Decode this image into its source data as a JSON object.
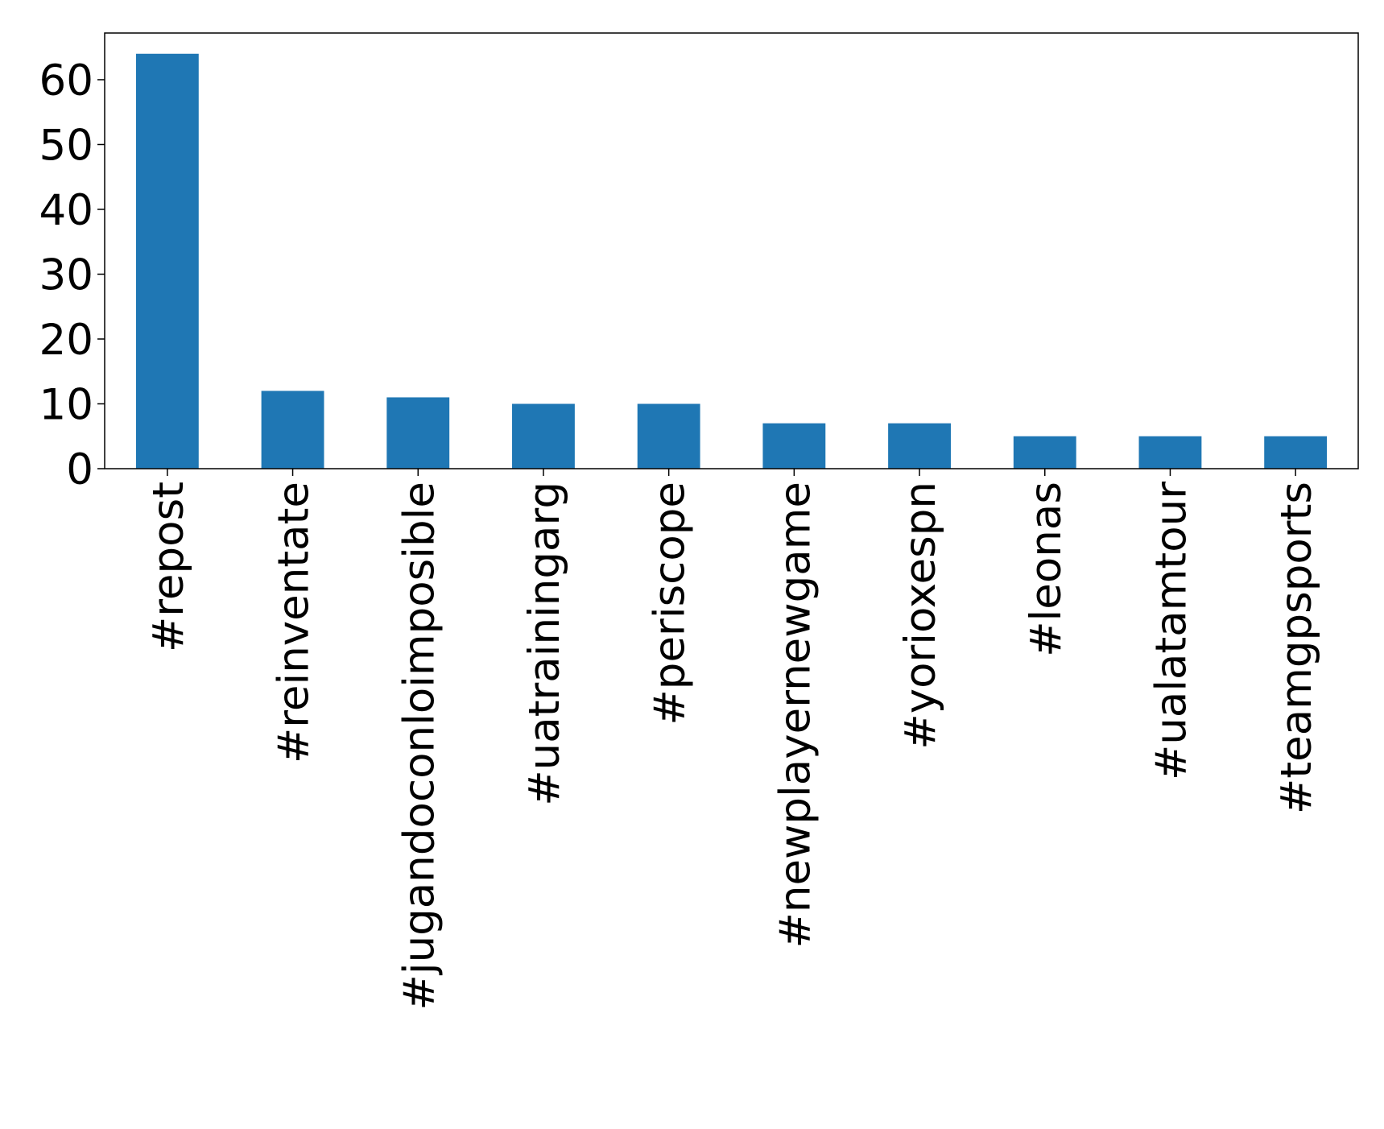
{
  "chart_data": {
    "type": "bar",
    "categories": [
      "#repost",
      "#reinventate",
      "#jugandoconloimposible",
      "#uatrainingarg",
      "#periscope",
      "#newplayernewgame",
      "#yorioxespn",
      "#leonas",
      "#ualatamtour",
      "#teamgpsports"
    ],
    "values": [
      64,
      12,
      11,
      10,
      10,
      7,
      7,
      5,
      5,
      5
    ],
    "color": "#1f77b4",
    "ylim": [
      0,
      67.2
    ],
    "yticks": [
      0,
      10,
      20,
      30,
      40,
      50,
      60
    ],
    "grid": false
  }
}
